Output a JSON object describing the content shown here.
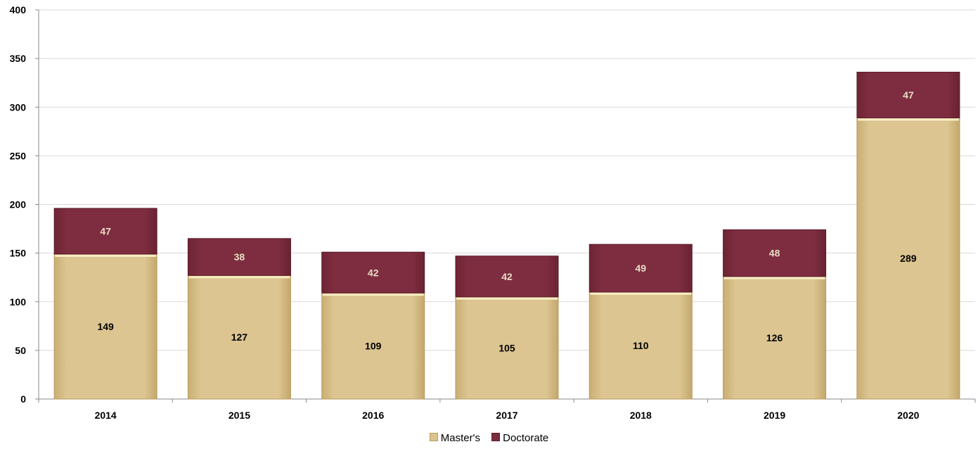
{
  "chart_data": {
    "type": "bar",
    "stacked": true,
    "categories": [
      "2014",
      "2015",
      "2016",
      "2017",
      "2018",
      "2019",
      "2020"
    ],
    "series": [
      {
        "name": "Master's",
        "values": [
          149,
          127,
          109,
          105,
          110,
          126,
          289
        ],
        "color": "#dbc38f",
        "label_color": "#000000"
      },
      {
        "name": "Doctorate",
        "values": [
          47,
          38,
          42,
          42,
          49,
          48,
          47
        ],
        "color": "#7b2c3f",
        "label_color": "#e9dcc4"
      }
    ],
    "ylim": [
      0,
      400
    ],
    "yticks": [
      0,
      50,
      100,
      150,
      200,
      250,
      300,
      350,
      400
    ],
    "grid": true,
    "legend_position": "bottom",
    "title": "",
    "xlabel": "",
    "ylabel": ""
  }
}
